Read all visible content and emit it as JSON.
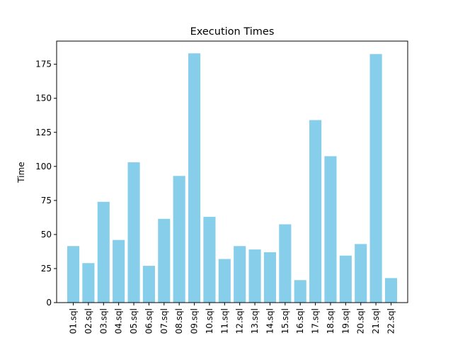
{
  "chart_data": {
    "type": "bar",
    "title": "Execution Times",
    "xlabel": "",
    "ylabel": "Time",
    "categories": [
      "01.sql",
      "02.sql",
      "03.sql",
      "04.sql",
      "05.sql",
      "06.sql",
      "07.sql",
      "08.sql",
      "09.sql",
      "10.sql",
      "11.sql",
      "12.sql",
      "13.sql",
      "14.sql",
      "15.sql",
      "16.sql",
      "17.sql",
      "18.sql",
      "19.sql",
      "20.sql",
      "21.sql",
      "22.sql"
    ],
    "values": [
      41.5,
      29,
      74,
      46,
      103,
      27,
      61.5,
      93,
      183,
      63,
      32,
      41.5,
      39,
      37,
      57.5,
      16.5,
      134,
      107.5,
      34.5,
      43,
      182.5,
      18
    ],
    "ylim": [
      0,
      192
    ],
    "yticks": [
      0,
      25,
      50,
      75,
      100,
      125,
      150,
      175
    ],
    "bar_color": "#87CEEB",
    "grid": false,
    "legend": "none"
  }
}
